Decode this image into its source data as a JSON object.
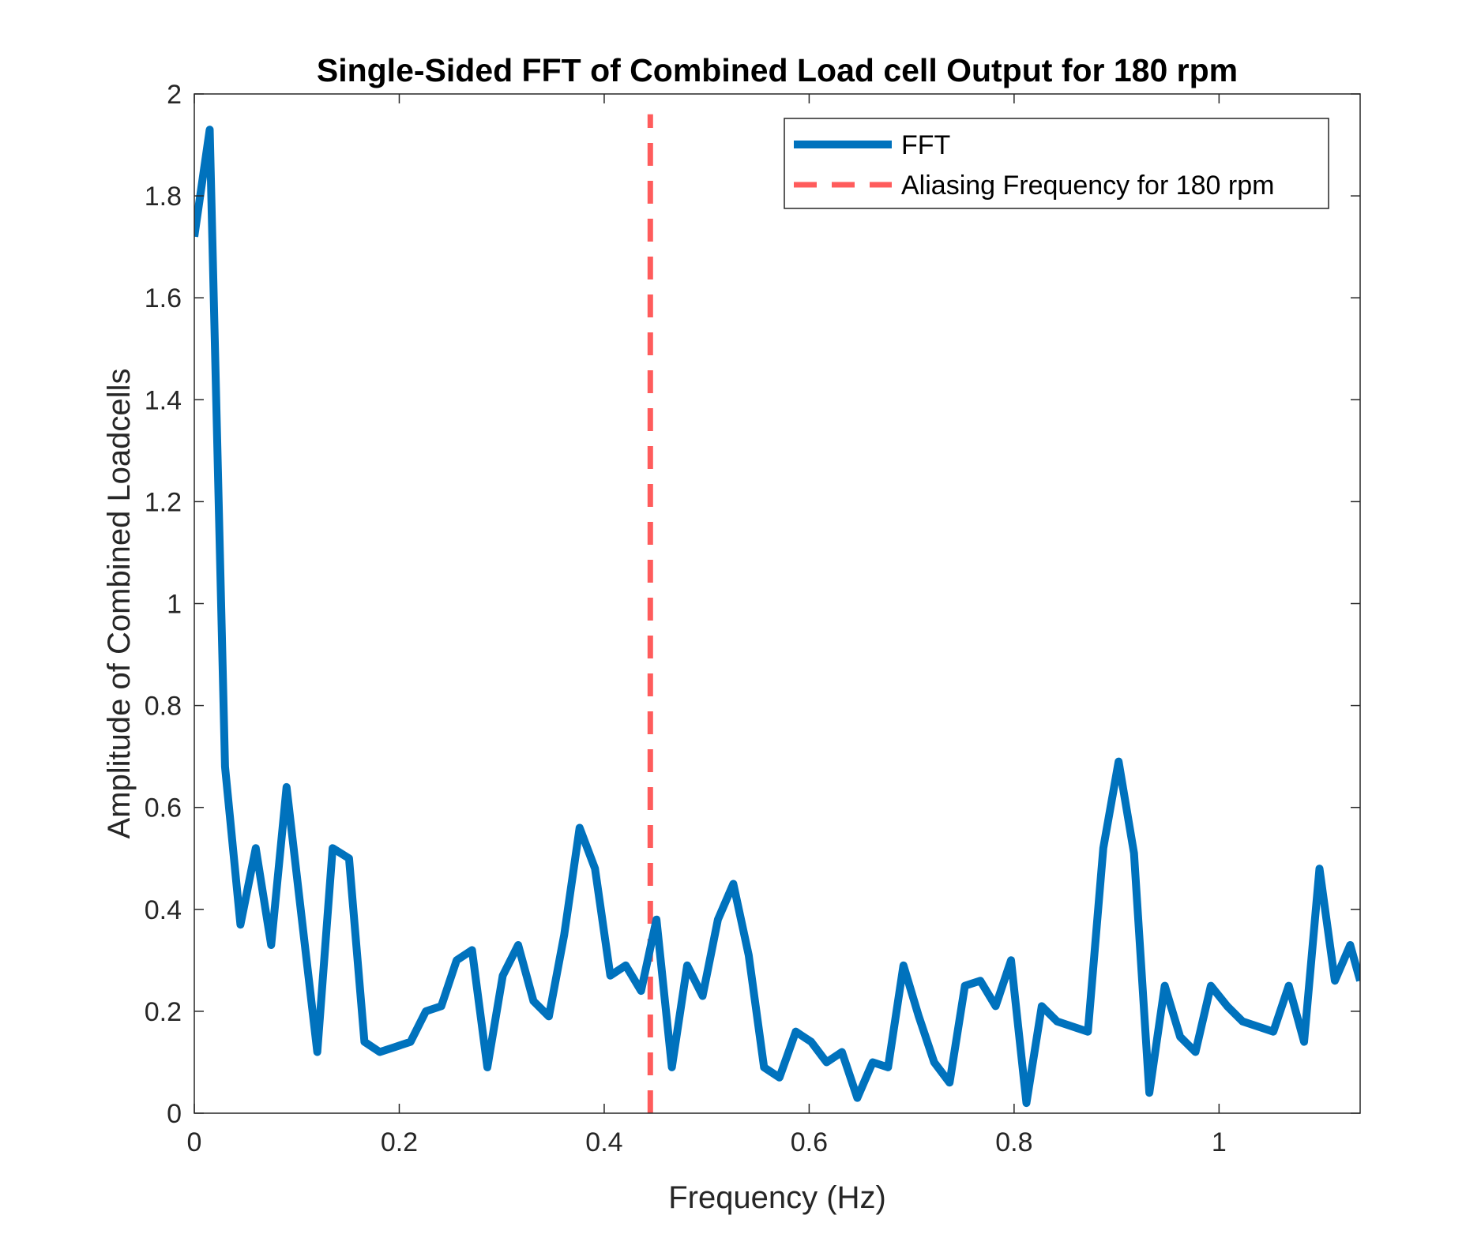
{
  "chart_data": {
    "type": "line",
    "title": "Single-Sided FFT of Combined Load cell Output for 180 rpm",
    "xlabel": "Frequency (Hz)",
    "ylabel": "Amplitude of Combined Loadcells",
    "xlim": [
      0,
      1.1377
    ],
    "ylim": [
      0,
      2
    ],
    "xticks": [
      0,
      0.2,
      0.4,
      0.6,
      0.8,
      1
    ],
    "xtick_labels": [
      "0",
      "0.2",
      "0.4",
      "0.6",
      "0.8",
      "1"
    ],
    "yticks": [
      0,
      0.2,
      0.4,
      0.6,
      0.8,
      1,
      1.2,
      1.4,
      1.6,
      1.8,
      2
    ],
    "ytick_labels": [
      "0",
      "0.2",
      "0.4",
      "0.6",
      "0.8",
      "1",
      "1.2",
      "1.4",
      "1.6",
      "1.8",
      "2"
    ],
    "grid": false,
    "legend_position": "top-right",
    "series": [
      {
        "name": "FFT",
        "style": "solid",
        "color": "#0072BD",
        "x": [
          0,
          0.015,
          0.03,
          0.045,
          0.06,
          0.075,
          0.09,
          0.105,
          0.12,
          0.135,
          0.151,
          0.166,
          0.181,
          0.196,
          0.211,
          0.226,
          0.241,
          0.256,
          0.271,
          0.286,
          0.301,
          0.316,
          0.331,
          0.346,
          0.361,
          0.376,
          0.391,
          0.406,
          0.421,
          0.436,
          0.451,
          0.466,
          0.481,
          0.496,
          0.511,
          0.526,
          0.541,
          0.556,
          0.571,
          0.587,
          0.602,
          0.617,
          0.632,
          0.647,
          0.662,
          0.677,
          0.692,
          0.707,
          0.722,
          0.737,
          0.752,
          0.767,
          0.782,
          0.797,
          0.812,
          0.827,
          0.842,
          0.857,
          0.872,
          0.887,
          0.902,
          0.917,
          0.932,
          0.947,
          0.962,
          0.977,
          0.992,
          1.008,
          1.023,
          1.038,
          1.053,
          1.068,
          1.083,
          1.098,
          1.113,
          1.128,
          1.1377
        ],
        "y": [
          1.72,
          1.93,
          0.68,
          0.37,
          0.52,
          0.33,
          0.64,
          0.38,
          0.12,
          0.52,
          0.5,
          0.14,
          0.12,
          0.13,
          0.14,
          0.2,
          0.21,
          0.3,
          0.32,
          0.09,
          0.27,
          0.33,
          0.22,
          0.19,
          0.35,
          0.56,
          0.48,
          0.27,
          0.29,
          0.24,
          0.38,
          0.09,
          0.29,
          0.23,
          0.38,
          0.45,
          0.31,
          0.09,
          0.07,
          0.16,
          0.14,
          0.1,
          0.12,
          0.03,
          0.1,
          0.09,
          0.29,
          0.19,
          0.1,
          0.06,
          0.25,
          0.26,
          0.21,
          0.3,
          0.02,
          0.21,
          0.18,
          0.17,
          0.16,
          0.52,
          0.69,
          0.51,
          0.04,
          0.25,
          0.15,
          0.12,
          0.25,
          0.21,
          0.18,
          0.17,
          0.16,
          0.25,
          0.14,
          0.48,
          0.26,
          0.33,
          0.26
        ]
      },
      {
        "name": "Aliasing Frequency for 180 rpm",
        "style": "dashed",
        "color": "#FF4040",
        "x": [
          0.445,
          0.445
        ],
        "y": [
          0,
          1.96
        ]
      }
    ]
  }
}
